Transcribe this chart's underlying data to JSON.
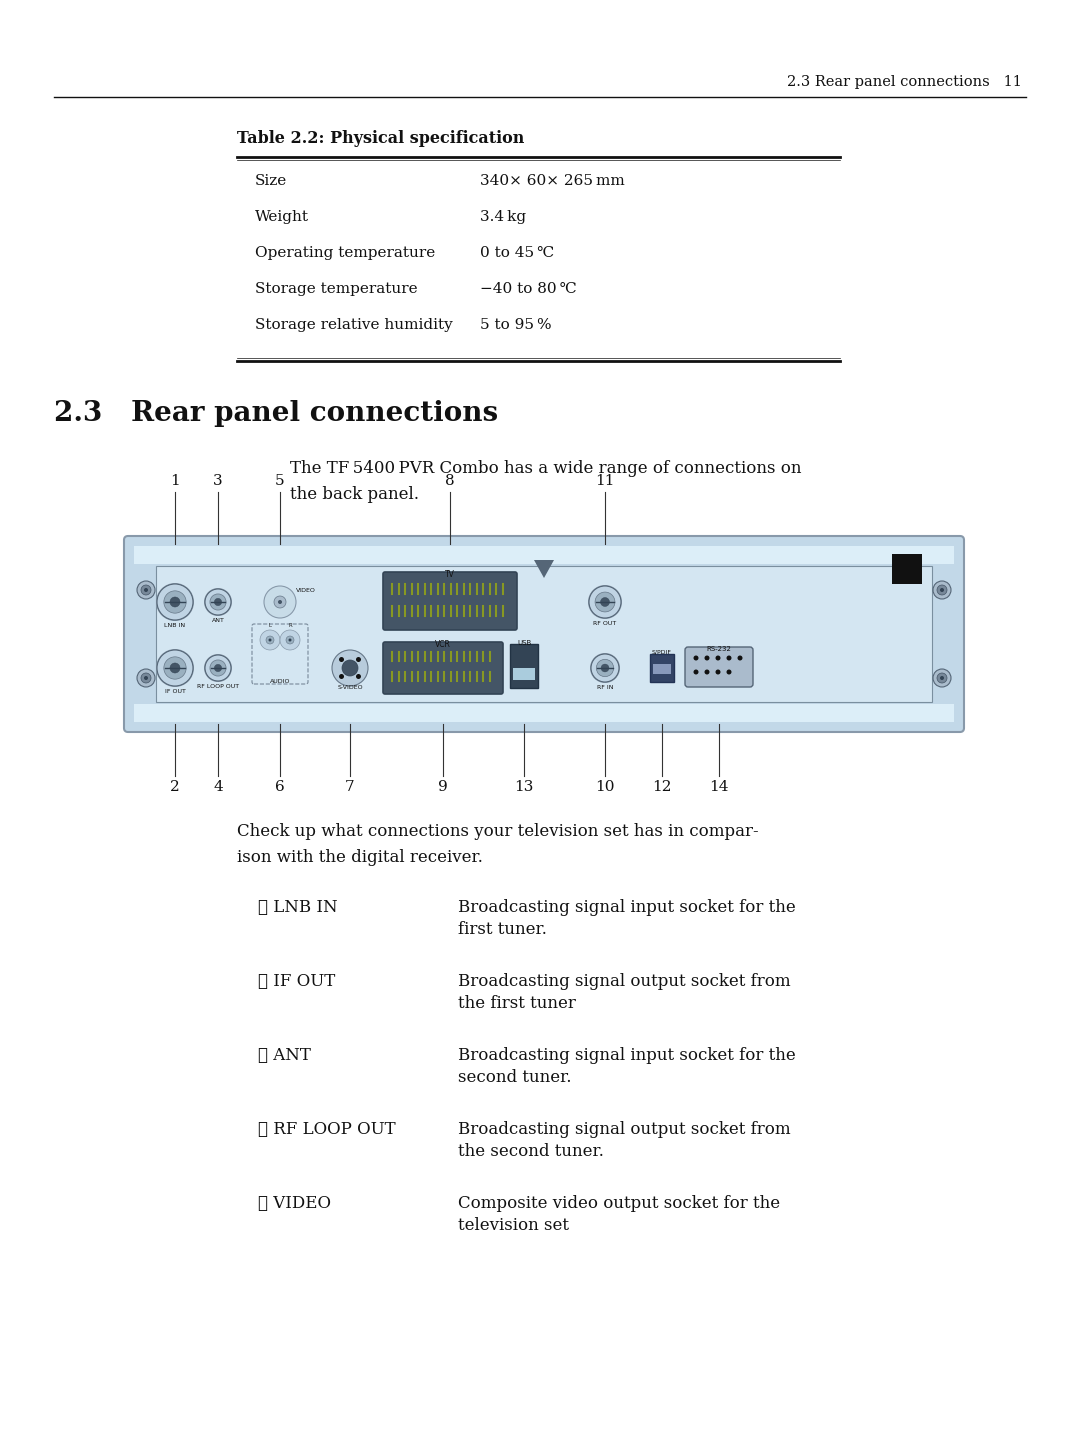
{
  "bg_color": "#ffffff",
  "header_text": "2.3 Rear panel connections   11",
  "table_title": "Table 2.2: Physical specification",
  "table_rows": [
    [
      "Size",
      "340× 60× 265 mm"
    ],
    [
      "Weight",
      "3.4 kg"
    ],
    [
      "Operating temperature",
      "0 to 45 ℃"
    ],
    [
      "Storage temperature",
      "−40 to 80 ℃"
    ],
    [
      "Storage relative humidity",
      "5 to 95 %"
    ]
  ],
  "section_heading": "2.3   Rear panel connections",
  "intro_line1": "The TF 5400 PVR Combo has a wide range of connections on",
  "intro_line2": "the back panel.",
  "check_line1": "Check up what connections your television set has in compar-",
  "check_line2": "ison with the digital receiver.",
  "connector_list": [
    [
      "① LNB IN",
      "Broadcasting signal input socket for the",
      "first tuner."
    ],
    [
      "② IF OUT",
      "Broadcasting signal output socket from",
      "the first tuner"
    ],
    [
      "③ ANT",
      "Broadcasting signal input socket for the",
      "second tuner."
    ],
    [
      "④ RF LOOP OUT",
      "Broadcasting signal output socket from",
      "the second tuner."
    ],
    [
      "⑤ VIDEO",
      "Composite video output socket for the",
      "television set"
    ]
  ],
  "panel_color_outer": "#b8cedd",
  "panel_color_inner": "#d0e4ef",
  "panel_color_top_strip": "#c8dae8"
}
